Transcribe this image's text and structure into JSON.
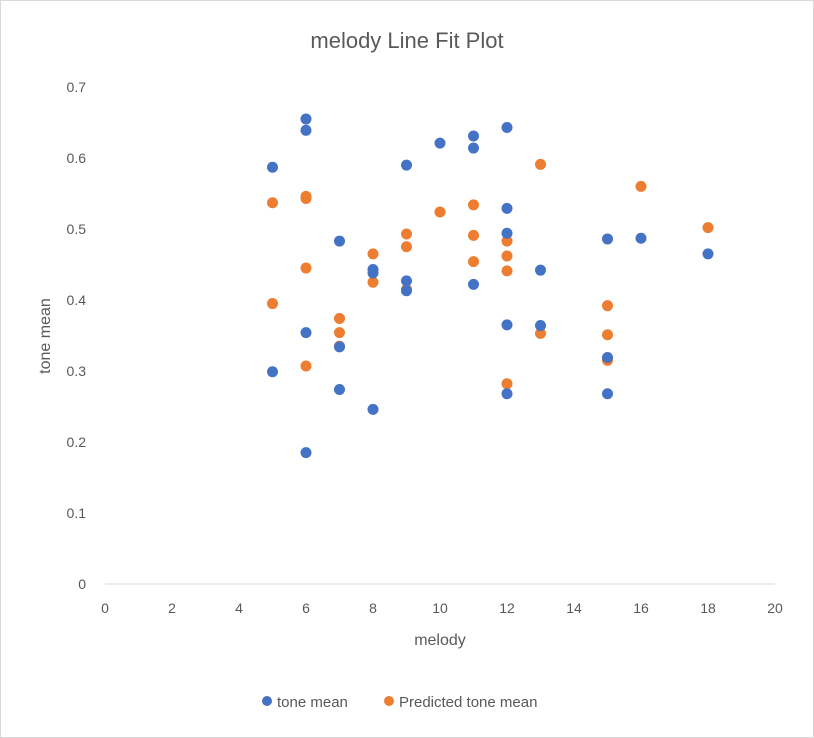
{
  "chart_data": {
    "type": "scatter",
    "title": "melody Line Fit  Plot",
    "xlabel": "melody",
    "ylabel": "tone mean",
    "xlim": [
      0,
      20
    ],
    "ylim": [
      0,
      0.7
    ],
    "x_ticks": [
      "0",
      "2",
      "4",
      "6",
      "8",
      "10",
      "12",
      "14",
      "16",
      "18",
      "20"
    ],
    "y_ticks": [
      "0",
      "0.1",
      "0.2",
      "0.3",
      "0.4",
      "0.5",
      "0.6",
      "0.7"
    ],
    "grid": false,
    "legend_position": "bottom",
    "series": [
      {
        "name": "tone mean",
        "color": "#4472c4",
        "points": [
          [
            5,
            0.587
          ],
          [
            5,
            0.299
          ],
          [
            6,
            0.655
          ],
          [
            6,
            0.639
          ],
          [
            6,
            0.354
          ],
          [
            6,
            0.185
          ],
          [
            7,
            0.483
          ],
          [
            7,
            0.334
          ],
          [
            7,
            0.274
          ],
          [
            8,
            0.443
          ],
          [
            8,
            0.438
          ],
          [
            8,
            0.246
          ],
          [
            9,
            0.59
          ],
          [
            9,
            0.427
          ],
          [
            9,
            0.413
          ],
          [
            10,
            0.621
          ],
          [
            11,
            0.631
          ],
          [
            11,
            0.614
          ],
          [
            11,
            0.422
          ],
          [
            12,
            0.643
          ],
          [
            12,
            0.529
          ],
          [
            12,
            0.494
          ],
          [
            12,
            0.365
          ],
          [
            12,
            0.268
          ],
          [
            13,
            0.442
          ],
          [
            13,
            0.364
          ],
          [
            15,
            0.486
          ],
          [
            15,
            0.319
          ],
          [
            15,
            0.268
          ],
          [
            16,
            0.487
          ],
          [
            18,
            0.465
          ]
        ]
      },
      {
        "name": "Predicted tone mean",
        "color": "#ed7d31",
        "points": [
          [
            5,
            0.537
          ],
          [
            5,
            0.395
          ],
          [
            6,
            0.546
          ],
          [
            6,
            0.543
          ],
          [
            6,
            0.445
          ],
          [
            6,
            0.307
          ],
          [
            7,
            0.374
          ],
          [
            7,
            0.354
          ],
          [
            7,
            0.335
          ],
          [
            8,
            0.465
          ],
          [
            8,
            0.425
          ],
          [
            9,
            0.493
          ],
          [
            9,
            0.475
          ],
          [
            9,
            0.415
          ],
          [
            10,
            0.524
          ],
          [
            11,
            0.534
          ],
          [
            11,
            0.491
          ],
          [
            11,
            0.454
          ],
          [
            12,
            0.483
          ],
          [
            12,
            0.462
          ],
          [
            12,
            0.441
          ],
          [
            12,
            0.282
          ],
          [
            13,
            0.591
          ],
          [
            13,
            0.353
          ],
          [
            15,
            0.392
          ],
          [
            15,
            0.351
          ],
          [
            15,
            0.315
          ],
          [
            16,
            0.56
          ],
          [
            18,
            0.502
          ]
        ]
      }
    ]
  }
}
